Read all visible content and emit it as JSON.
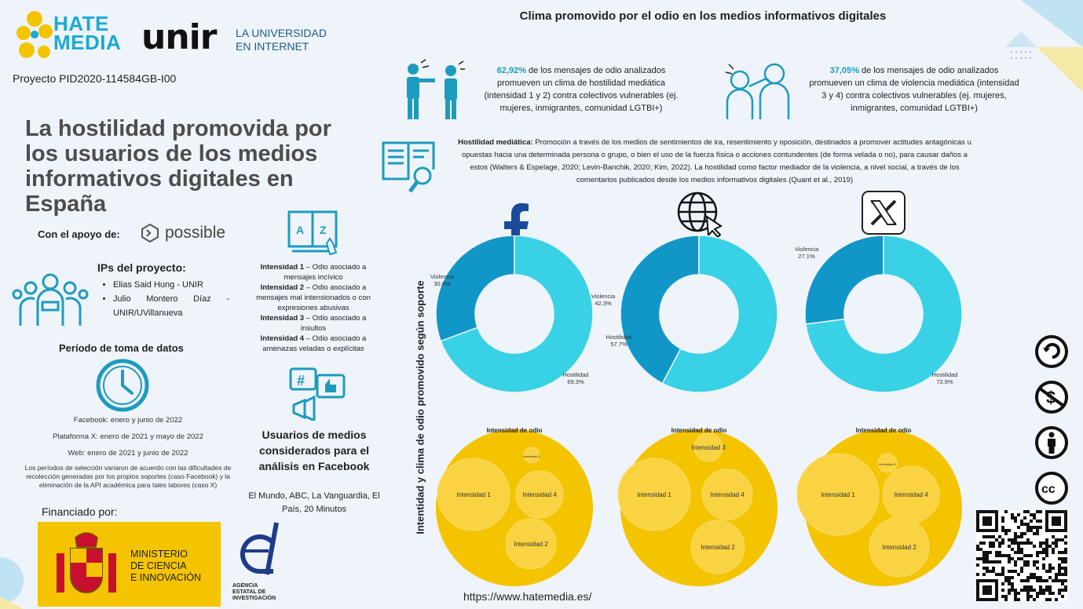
{
  "brand": {
    "hate_media": [
      "HATE",
      "MEDIA"
    ],
    "unir": "unir",
    "unir_sub": [
      "LA UNIVERSIDAD",
      "EN INTERNET"
    ],
    "proyecto": "Proyecto PID2020-114584GB-I00"
  },
  "main_title": "La hostilidad promovida por los usuarios de los medios informativos digitales en España",
  "apoyo": {
    "label": "Con el apoyo de:",
    "sponsor": "possible"
  },
  "ips": {
    "title": "IPs del proyecto:",
    "items": [
      "Elias Said Hung - UNIR",
      "Julio Montero Díaz - UNIR/UVillanueva"
    ]
  },
  "periodo": {
    "title": "Período de toma de datos",
    "facebook": "Facebook: enero y junio de 2022",
    "plataforma_x": "Plataforma X: enero de 2021 y mayo de 2022",
    "web": "Web: enero de 2021 y junio de 2022",
    "note": "Los períodos de selección variaron de acuerdo con las dificultades de recolección generadas por los propios soportes (caso Facebook) y la eliminación de la API académica para tales labores (caso X)"
  },
  "financiado": {
    "label": "Financiado por:",
    "ministerio": [
      "MINISTERIO",
      "DE CIENCIA",
      "E INNOVACIÓN"
    ],
    "aei": [
      "AGENCIA",
      "ESTATAL DE",
      "INVESTIGACIÓN"
    ]
  },
  "intensidades": [
    {
      "name": "Intensidad 1",
      "desc": " – Odio asociado a mensajes incívico"
    },
    {
      "name": "Intensidad 2",
      "desc": " – Odio asociado a mensajes mal intensionados o con expresiones abusivas"
    },
    {
      "name": "Intensidad 3",
      "desc": " – Odio asociado a insultos"
    },
    {
      "name": "Intensidad 4",
      "desc": " – Odio asociado a amenazas veladas o explícitas"
    }
  ],
  "usuarios": {
    "title": "Usuarios de medios considerados para el análisis en Facebook",
    "medios": "El Mundo, ABC, La Vanguardia, El País, 20 Minutos"
  },
  "page_title": "Clima promovido por el odio en los medios informativos digitales",
  "stats": [
    {
      "value": "62,92%",
      "text": " de los mensajes de odio analizados promueven un clima de hostilidad  mediática (intensidad 1 y 2) contra colectivos vulnerables (ej. mujeres, inmigrantes, comunidad LGTBI+)"
    },
    {
      "value": "37,05%",
      "text": " de los mensajes de odio analizados promueven un clima de violencia mediática (intensidad 3 y 4) contra colectivos vulnerables (ej. mujeres, inmigrantes, comunidad LGTBI+)"
    }
  ],
  "hostilidad_def": {
    "term": "Hostilidad mediática:",
    "text": " Promoción a través de los medios de sentimientos de ira, resentimiento y oposición, destinados a promover actitudes antagónicas u opuestas hacia una determinada persona o grupo, o bien el uso de la fuerza física o acciones contundentes (de forma velada o no), para causar daños a estos (Walters & Espelage, 2020; Levin-Banchik, 2020; Kim, 2022).  La hostilidad como factor mediador de la violencia, a nivel social, a través de los comentarios publicados desde los medios informativos digitales (Quant et al., 2019)"
  },
  "vertical_title": "Intentidad y clima de odio promovido según soporte",
  "chart_data": [
    {
      "type": "pie",
      "source": "facebook",
      "labels": [
        "Violencia",
        "Hostilidad"
      ],
      "values": [
        30.6,
        69.3
      ],
      "value_labels": [
        "30.6%",
        "69.3%"
      ],
      "colors": [
        "#1196c8",
        "#39d1e5"
      ]
    },
    {
      "type": "pie",
      "source": "web",
      "labels": [
        "Violencia",
        "Hostilidad"
      ],
      "values": [
        42.3,
        57.7
      ],
      "value_labels": [
        "42.3%",
        "57.7%"
      ],
      "colors": [
        "#1196c8",
        "#39d1e5"
      ]
    },
    {
      "type": "pie",
      "source": "x",
      "labels": [
        "Violencia",
        "Hostilidad"
      ],
      "values": [
        27.1,
        72.9
      ],
      "value_labels": [
        "27.1%",
        "72.9%"
      ],
      "colors": [
        "#1196c8",
        "#39d1e5"
      ]
    }
  ],
  "bubbles": {
    "title": "Intensidad de odio",
    "labels": [
      "Intensidad 1",
      "Intensidad 2",
      "Intensidad 3",
      "Intensidad 4"
    ]
  },
  "url": "https://www.hatemedia.es/",
  "colors": {
    "teal": "#1d9bbf",
    "donut_dark": "#1196c8",
    "donut_light": "#39d1e5",
    "bubble": "#f4c400",
    "bubble_inner": "#f9d342"
  },
  "icons": [
    "facebook-icon",
    "globe-icon",
    "x-icon",
    "cc-by-icon",
    "cc-nc-icon",
    "cc-attribution-icon",
    "cc-icon",
    "qr-code-icon"
  ]
}
